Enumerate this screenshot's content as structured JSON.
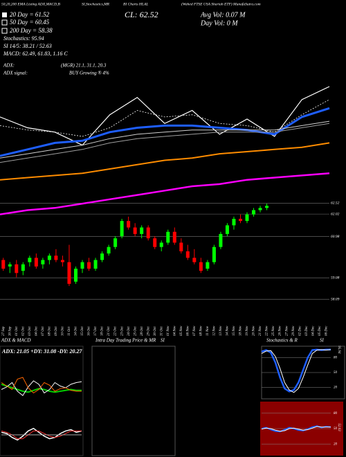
{
  "header": {
    "top_line": [
      "50,20,200 EMA Listing ADX,MACD,B",
      "SI,Stochastics,MR",
      "BI Charts HLAL",
      "(Wahed FTSE USA Shariah ETF) MunafaSutra.com"
    ],
    "close": "CL: 62.52",
    "avg_volume": "Avg Vol: 0.07  M",
    "day_volume": "Day Vol: 0   M",
    "legend": [
      "20 Day = 61.52",
      "50 Day = 60.45",
      "200 Day = 58.38"
    ],
    "indicators": [
      "Stochastics: 95.94",
      "SI 14/5: 38.21 / 52.63",
      "MACD: 62.49, 61.83, 1.16  C"
    ],
    "adx": "ADX:",
    "adx_signal": "ADX  signal:",
    "mrsi": "(MGR) 21.1, 31.1, 20.3",
    "signal": "BUY Growing ® 4%"
  },
  "chart_data": [
    {
      "type": "candlestick",
      "x": [
        "27 Sep",
        "30 Sep",
        "01 Oct",
        "02 Oct",
        "03 Oct",
        "04 Oct",
        "07 Oct",
        "08 Oct",
        "09 Oct",
        "10 Oct",
        "11 Oct",
        "14 Oct",
        "15 Oct",
        "16 Oct",
        "17 Oct",
        "18 Oct",
        "21 Oct",
        "22 Oct",
        "23 Oct",
        "24 Oct",
        "25 Oct",
        "28 Oct",
        "29 Oct",
        "30 Oct",
        "31 Oct",
        "01 Nov",
        "04 Nov",
        "05 Nov",
        "06 Nov",
        "07 Nov",
        "08 Nov",
        "11 Nov",
        "12 Nov",
        "13 Nov",
        "14 Nov",
        "15 Nov",
        "18 Nov",
        "19 Nov",
        "20 Nov",
        "21 Nov",
        "22 Nov",
        "25 Nov",
        "26 Nov",
        "27 Nov",
        "29 Nov",
        "02 Dec",
        "03 Dec",
        "04 Dec",
        "05 Dec",
        "06 Dec"
      ],
      "open": [
        59.9,
        59.6,
        59.7,
        59.4,
        59.8,
        60.0,
        59.7,
        59.9,
        60.1,
        59.9,
        59.8,
        58.9,
        59.5,
        59.8,
        59.5,
        59.9,
        60.2,
        60.5,
        61.0,
        61.7,
        61.4,
        61.1,
        61.4,
        60.9,
        60.5,
        60.7,
        61.2,
        60.7,
        60.3,
        60.0,
        59.8,
        59.5,
        59.8,
        60.5,
        61.1,
        61.5,
        61.8,
        61.7,
        62.0,
        62.2,
        62.3,
        null,
        null,
        null,
        null,
        null,
        null,
        null,
        null,
        null
      ],
      "high": [
        60.0,
        59.8,
        59.9,
        59.8,
        60.1,
        60.2,
        60.0,
        60.2,
        60.4,
        60.1,
        60.6,
        59.6,
        59.9,
        60.0,
        60.0,
        60.3,
        60.6,
        61.0,
        61.8,
        61.9,
        61.6,
        61.5,
        61.5,
        61.0,
        60.8,
        61.3,
        61.4,
        60.9,
        60.6,
        60.4,
        60.0,
        59.9,
        60.6,
        61.2,
        61.6,
        61.9,
        62.0,
        62.1,
        62.3,
        62.4,
        62.5,
        null,
        null,
        null,
        null,
        null,
        null,
        null,
        null,
        null
      ],
      "low": [
        59.4,
        59.3,
        59.1,
        59.2,
        59.6,
        59.5,
        59.5,
        59.7,
        59.8,
        59.6,
        58.7,
        58.8,
        59.3,
        59.4,
        59.4,
        59.8,
        60.1,
        60.4,
        60.9,
        61.3,
        61.0,
        60.9,
        60.8,
        60.4,
        60.3,
        60.6,
        60.6,
        60.2,
        59.9,
        59.7,
        59.3,
        59.4,
        59.7,
        60.4,
        61.0,
        61.3,
        61.6,
        61.6,
        61.9,
        62.1,
        62.2,
        null,
        null,
        null,
        null,
        null,
        null,
        null,
        null,
        null
      ],
      "close": [
        59.5,
        59.7,
        59.3,
        59.7,
        60.0,
        59.6,
        59.9,
        60.1,
        59.9,
        59.8,
        58.8,
        59.5,
        59.8,
        59.5,
        59.9,
        60.2,
        60.5,
        60.9,
        61.7,
        61.4,
        61.1,
        61.4,
        60.9,
        60.5,
        60.7,
        61.2,
        60.7,
        60.3,
        60.0,
        59.8,
        59.4,
        59.8,
        60.5,
        61.1,
        61.5,
        61.8,
        61.7,
        62.0,
        62.2,
        62.3,
        62.4,
        null,
        null,
        null,
        null,
        null,
        null,
        null,
        null,
        null
      ],
      "up_color": "#00ff00",
      "down_color": "#ff0000",
      "overlays": [
        {
          "color": "#ffffff",
          "width": 1.2,
          "dash": false,
          "values": [
            66.5,
            66.0,
            65.8,
            65.2,
            66.6,
            67.4,
            66.2,
            66.8,
            65.7,
            66.4,
            65.6,
            67.3,
            67.9
          ]
        },
        {
          "color": "#ffffff",
          "width": 0.8,
          "dash": true,
          "values": [
            66.1,
            65.9,
            65.8,
            65.6,
            66.0,
            66.8,
            66.5,
            66.6,
            66.2,
            66.1,
            65.8,
            66.6,
            67.3
          ]
        },
        {
          "color": "#1e5eff",
          "width": 3,
          "dash": false,
          "values": [
            64.7,
            65.0,
            65.3,
            65.4,
            65.8,
            66.0,
            66.1,
            66.1,
            66.0,
            65.9,
            65.7,
            66.5,
            66.9
          ]
        },
        {
          "color": "#d0d0d0",
          "width": 1,
          "dash": false,
          "values": [
            64.6,
            64.8,
            65.0,
            65.2,
            65.5,
            65.7,
            65.8,
            65.9,
            65.9,
            65.9,
            65.9,
            66.1,
            66.3
          ]
        },
        {
          "color": "#a0a0a0",
          "width": 1,
          "dash": false,
          "values": [
            64.4,
            64.6,
            64.8,
            65.0,
            65.3,
            65.5,
            65.6,
            65.7,
            65.8,
            65.8,
            65.8,
            66.0,
            66.2
          ]
        },
        {
          "color": "#ff8c00",
          "width": 2,
          "dash": false,
          "values": [
            63.6,
            63.7,
            63.8,
            63.9,
            64.1,
            64.3,
            64.5,
            64.6,
            64.8,
            64.9,
            65.0,
            65.1,
            65.3
          ]
        },
        {
          "color": "#ff00ff",
          "width": 2.5,
          "dash": false,
          "values": [
            62.0,
            62.2,
            62.3,
            62.5,
            62.7,
            62.9,
            63.1,
            63.3,
            63.4,
            63.6,
            63.7,
            63.8,
            63.9
          ]
        }
      ],
      "ylim": [
        57.2,
        68.7
      ],
      "yticks": [
        62.52,
        62.02,
        60.98,
        59.08,
        58.09
      ],
      "grid": true
    },
    {
      "type": "line",
      "title": "ADX & MACD",
      "subtitle": "ADX: 21.05 +DY: 31.08 -DY: 20.27",
      "ylim": [
        0,
        60
      ],
      "series": [
        {
          "color": "#00cc00",
          "width": 2,
          "values": [
            28,
            26,
            24,
            22,
            20,
            19,
            21,
            23,
            22,
            20,
            19,
            20,
            21,
            22,
            21,
            21
          ]
        },
        {
          "color": "#ffffff",
          "width": 1,
          "values": [
            22,
            25,
            30,
            20,
            15,
            25,
            32,
            28,
            18,
            22,
            30,
            26,
            24,
            28,
            30,
            31
          ]
        },
        {
          "color": "#ff6600",
          "width": 1,
          "values": [
            30,
            26,
            22,
            34,
            36,
            24,
            18,
            22,
            30,
            27,
            20,
            23,
            24,
            21,
            20,
            20
          ]
        }
      ]
    },
    {
      "type": "line",
      "ylim": [
        -1.5,
        1.5
      ],
      "series": [
        {
          "color": "#ffffff",
          "width": 1.5,
          "values": [
            0.2,
            0.1,
            -0.2,
            -0.4,
            -0.1,
            0.3,
            0.5,
            0.2,
            -0.1,
            -0.3,
            -0.2,
            0.1,
            0.3,
            0.4,
            0.2,
            0.3
          ]
        },
        {
          "color": "#ff3333",
          "width": 1,
          "values": [
            0.3,
            0.2,
            0.0,
            -0.3,
            -0.3,
            0.0,
            0.3,
            0.3,
            0.1,
            -0.1,
            -0.2,
            -0.1,
            0.1,
            0.3,
            0.3,
            0.3
          ]
        },
        {
          "color": "#aaaaaa",
          "width": 1,
          "values": [
            0,
            0,
            0,
            0,
            0,
            0,
            0,
            0,
            0,
            0,
            0,
            0,
            0,
            0,
            0,
            0
          ]
        }
      ]
    },
    {
      "type": "line",
      "title": "Intra Day Trading Price & MR",
      "title_suffix": "SI",
      "ylim": [
        0,
        100
      ],
      "series": []
    },
    {
      "type": "line",
      "title": "Stochastics & R",
      "title_suffix": "SI",
      "ylim": [
        0,
        100
      ],
      "yticks": [
        80,
        50,
        20
      ],
      "current_value": 95.94,
      "series": [
        {
          "color": "#1e5eff",
          "width": 2.5,
          "values": [
            92,
            95,
            90,
            70,
            40,
            18,
            12,
            15,
            30,
            55,
            80,
            95,
            96,
            95,
            96,
            96
          ]
        },
        {
          "color": "#ffffff",
          "width": 1,
          "values": [
            88,
            93,
            94,
            82,
            58,
            30,
            15,
            10,
            18,
            40,
            65,
            88,
            95,
            96,
            95,
            96
          ]
        }
      ]
    },
    {
      "type": "line",
      "background": "#8b0000",
      "ylim": [
        0,
        100
      ],
      "yticks": [
        80,
        50,
        20
      ],
      "current_value": 52.63,
      "series": [
        {
          "color": "#1e5eff",
          "width": 2,
          "values": [
            50,
            52,
            48,
            45,
            44,
            48,
            52,
            50,
            47,
            46,
            49,
            53,
            55,
            52,
            54,
            53
          ]
        },
        {
          "color": "#ffffff",
          "width": 1,
          "values": [
            49,
            51,
            50,
            47,
            45,
            46,
            50,
            51,
            49,
            47,
            48,
            51,
            54,
            53,
            53,
            53
          ]
        }
      ]
    }
  ]
}
